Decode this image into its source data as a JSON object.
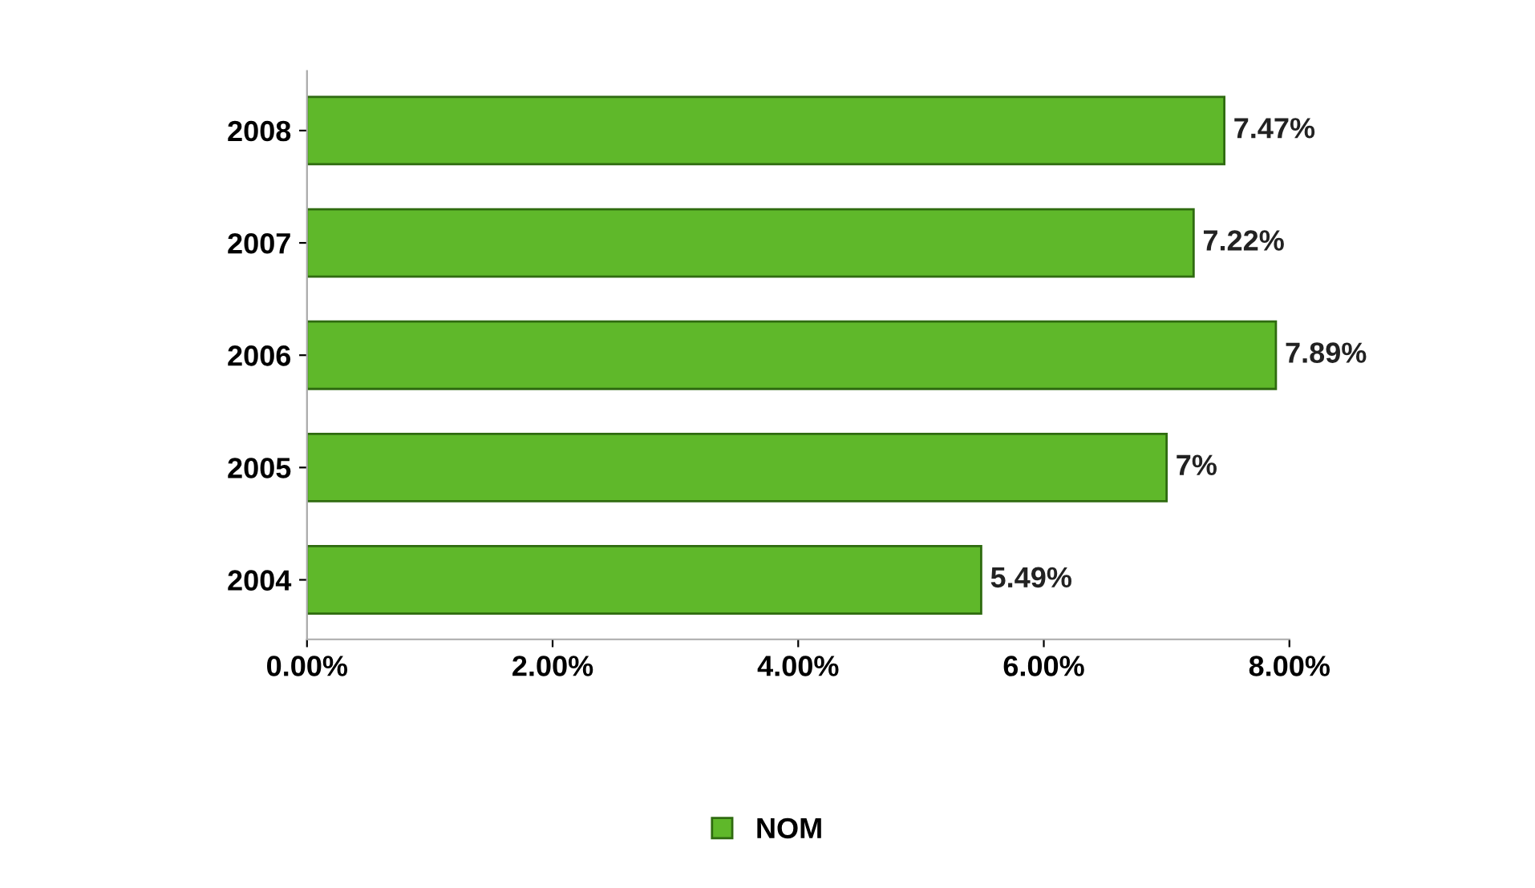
{
  "chart_data": {
    "type": "bar",
    "orientation": "horizontal",
    "categories": [
      "2008",
      "2007",
      "2006",
      "2005",
      "2004"
    ],
    "series": [
      {
        "name": "NOM",
        "color": "#5fb82a",
        "values": [
          7.47,
          7.22,
          7.89,
          7,
          5.49
        ],
        "value_labels": [
          "7.47%",
          "7.22%",
          "7.89%",
          "7%",
          "5.49%"
        ]
      }
    ],
    "xlim": [
      0,
      8
    ],
    "xticks": [
      {
        "value": 0,
        "label": "0.00%"
      },
      {
        "value": 2,
        "label": "2.00%"
      },
      {
        "value": 4,
        "label": "4.00%"
      },
      {
        "value": 6,
        "label": "6.00%"
      },
      {
        "value": 8,
        "label": "8.00%"
      }
    ],
    "grid": false,
    "legend": "bottom"
  }
}
